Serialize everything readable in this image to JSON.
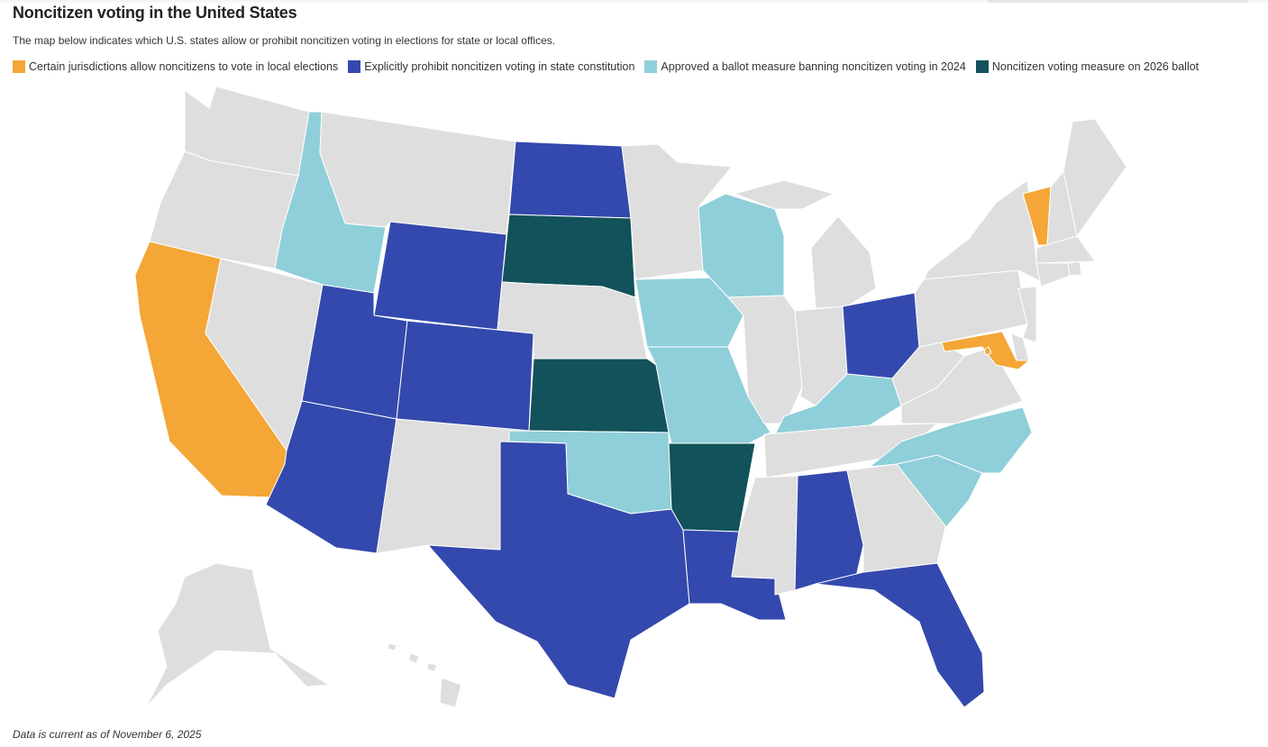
{
  "title": "Noncitizen voting in the United States",
  "subtitle": "The map below indicates which U.S. states allow or prohibit noncitizen voting in elections for state or local offices.",
  "footnote": "Data is current as of November 6, 2025",
  "colors": {
    "local_allowed": "#f4a636",
    "constitution_prohibit": "#3449ad",
    "ballot_2024": "#8fcfd9",
    "ballot_2026": "#12525a",
    "none": "#dedede"
  },
  "legend": [
    {
      "key": "local_allowed",
      "label": "Certain jurisdictions allow noncitizens to vote in local elections"
    },
    {
      "key": "constitution_prohibit",
      "label": "Explicitly prohibit noncitizen voting in state constitution"
    },
    {
      "key": "ballot_2024",
      "label": "Approved a ballot measure banning noncitizen voting in 2024"
    },
    {
      "key": "ballot_2026",
      "label": "Noncitizen voting measure on 2026 ballot"
    }
  ],
  "states": {
    "WA": "none",
    "OR": "none",
    "CA": "local_allowed",
    "NV": "none",
    "ID": "ballot_2024",
    "MT": "none",
    "WY": "constitution_prohibit",
    "UT": "constitution_prohibit",
    "AZ": "constitution_prohibit",
    "CO": "constitution_prohibit",
    "NM": "none",
    "ND": "constitution_prohibit",
    "SD": "ballot_2026",
    "NE": "none",
    "KS": "ballot_2026",
    "OK": "ballot_2024",
    "TX": "constitution_prohibit",
    "MN": "none",
    "IA": "ballot_2024",
    "MO": "ballot_2024",
    "AR": "ballot_2026",
    "LA": "constitution_prohibit",
    "WI": "ballot_2024",
    "IL": "none",
    "MI": "none",
    "IN": "none",
    "OH": "constitution_prohibit",
    "KY": "ballot_2024",
    "TN": "none",
    "MS": "none",
    "AL": "constitution_prohibit",
    "GA": "none",
    "FL": "constitution_prohibit",
    "SC": "ballot_2024",
    "NC": "ballot_2024",
    "VA": "none",
    "WV": "none",
    "PA": "none",
    "NY": "none",
    "VT": "local_allowed",
    "NH": "none",
    "ME": "none",
    "MA": "none",
    "RI": "none",
    "CT": "none",
    "NJ": "none",
    "DE": "none",
    "MD": "local_allowed",
    "DC": "local_allowed",
    "AK": "none",
    "HI": "none"
  }
}
